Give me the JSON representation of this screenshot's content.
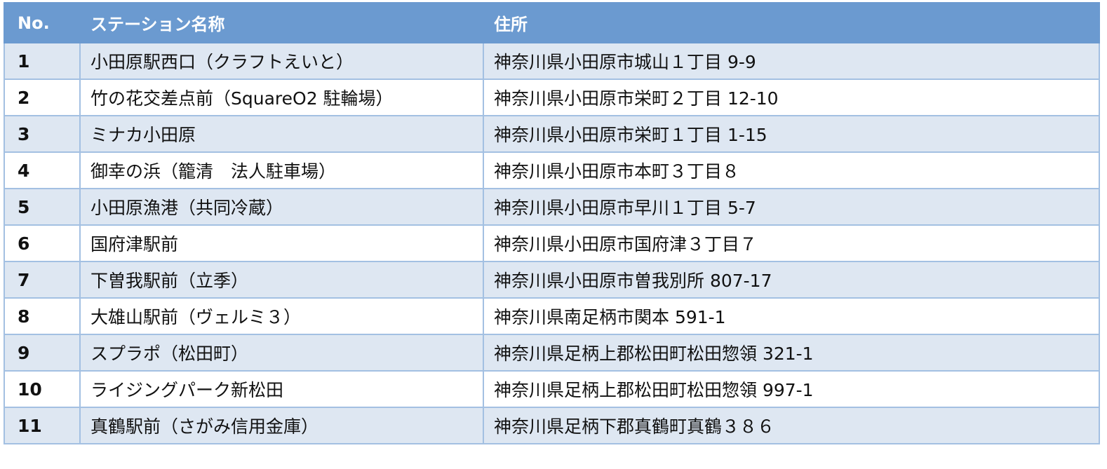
{
  "header": {
    "no": "No.",
    "name": "ステーション名称",
    "address": "住所"
  },
  "rows": [
    {
      "no": "1",
      "name": "小田原駅西口（クラフトえいと）",
      "address": "神奈川県小田原市城山１丁目 9-9"
    },
    {
      "no": "2",
      "name": "竹の花交差点前（SquareO2 駐輪場）",
      "address": "神奈川県小田原市栄町２丁目 12-10"
    },
    {
      "no": "3",
      "name": "ミナカ小田原",
      "address": "神奈川県小田原市栄町１丁目 1-15"
    },
    {
      "no": "4",
      "name": "御幸の浜（籠清　法人駐車場）",
      "address": "神奈川県小田原市本町３丁目８"
    },
    {
      "no": "5",
      "name": "小田原漁港（共同冷蔵）",
      "address": "神奈川県小田原市早川１丁目 5-7"
    },
    {
      "no": "6",
      "name": "国府津駅前",
      "address": "神奈川県小田原市国府津３丁目７"
    },
    {
      "no": "7",
      "name": "下曽我駅前（立季）",
      "address": "神奈川県小田原市曽我別所 807-17"
    },
    {
      "no": "8",
      "name": "大雄山駅前（ヴェルミ３）",
      "address": "神奈川県南足柄市関本 591-1"
    },
    {
      "no": "9",
      "name": "スプラポ（松田町）",
      "address": "神奈川県足柄上郡松田町松田惣領 321-1"
    },
    {
      "no": "10",
      "name": "ライジングパーク新松田",
      "address": "神奈川県足柄上郡松田町松田惣領 997-1"
    },
    {
      "no": "11",
      "name": "真鶴駅前（さがみ信用金庫）",
      "address": "神奈川県足柄下郡真鶴町真鶴３８６"
    }
  ],
  "colors": {
    "header_bg": "#6b9ad0",
    "odd_row_bg": "#dee7f2",
    "even_row_bg": "#ffffff",
    "border": "#a3c0e2"
  }
}
